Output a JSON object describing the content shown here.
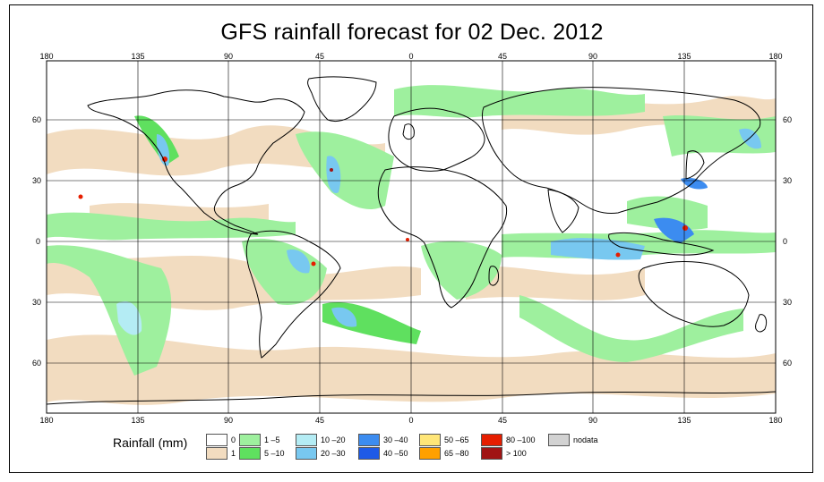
{
  "title": "GFS rainfall forecast for 02 Dec. 2012",
  "axes": {
    "top_lon_labels": [
      "180",
      "135",
      "90",
      "45",
      "0",
      "45",
      "90",
      "135",
      "180"
    ],
    "bottom_lon_labels": [
      "180",
      "135",
      "90",
      "45",
      "0",
      "45",
      "90",
      "135",
      "180"
    ],
    "left_lat_labels": [
      "60",
      "30",
      "0",
      "30",
      "60"
    ],
    "right_lat_labels": [
      "60",
      "30",
      "0",
      "30",
      "60"
    ]
  },
  "legend": {
    "title": "Rainfall (mm)",
    "items": [
      {
        "label": "0",
        "color": "#ffffff"
      },
      {
        "label": "1",
        "color": "#f2dcc0"
      },
      {
        "label": "1 –5",
        "color": "#9ef09e"
      },
      {
        "label": "5 –10",
        "color": "#5fe05f"
      },
      {
        "label": "10 –20",
        "color": "#b4ecf4"
      },
      {
        "label": "20 –30",
        "color": "#78c8f0"
      },
      {
        "label": "30 –40",
        "color": "#3c8cf0"
      },
      {
        "label": "40 –50",
        "color": "#1e5ae6"
      },
      {
        "label": "50 –65",
        "color": "#ffe678"
      },
      {
        "label": "65 –80",
        "color": "#ffa000"
      },
      {
        "label": "80 –100",
        "color": "#e61e00"
      },
      {
        "label": "> 100",
        "color": "#a01414"
      },
      {
        "label": "nodata",
        "color": "#d2d2d2"
      }
    ]
  },
  "colors": {
    "land_outline": "#000000",
    "grid": "#000000",
    "rain_light": "#f2dcc0",
    "rain_green": "#9ef09e",
    "rain_green_dark": "#5fe05f",
    "rain_cyan": "#b4ecf4",
    "rain_blue": "#78c8f0",
    "rain_blue_dark": "#3c8cf0",
    "rain_red": "#e61e00"
  }
}
